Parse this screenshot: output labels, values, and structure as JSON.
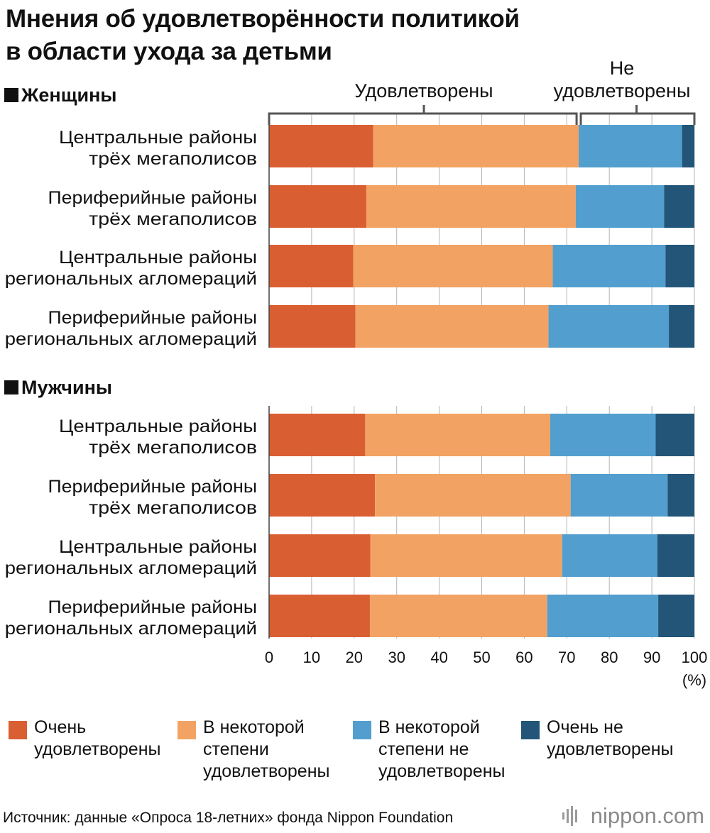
{
  "title_line1": "Мнения об удовлетворённости политикой",
  "title_line2": "в области ухода за детьми",
  "source": "Источник: данные «Опроса 18-летних» фонда Nippon Foundation",
  "brand": "nippon.com",
  "chart_data": {
    "type": "bar",
    "orientation": "horizontal",
    "stacked": true,
    "xlim": [
      0,
      100
    ],
    "xticks": [
      "0",
      "10",
      "20",
      "30",
      "40",
      "50",
      "60",
      "70",
      "80",
      "90",
      "100"
    ],
    "xunit": "(%)",
    "bracket_labels": {
      "satisfied": "Удовлетворены",
      "not_satisfied_line1": "Не",
      "not_satisfied_line2": "удовлетворены"
    },
    "series": [
      {
        "name": "Очень\nудовлетворены",
        "color": "#d95f33"
      },
      {
        "name": "В некоторой\nстепени\nудовлетворены",
        "color": "#f2a363"
      },
      {
        "name": "В некоторой\nстепени не\nудовлетворены",
        "color": "#529fcf"
      },
      {
        "name": "Очень не\nудовлетворены",
        "color": "#235578"
      }
    ],
    "groups": [
      {
        "name": "Женщины",
        "categories": [
          {
            "line1": "Центральные районы",
            "line2": "трёх мегаполисов",
            "values": [
              24.5,
              48.3,
              24.3,
              2.9
            ]
          },
          {
            "line1": "Периферийные районы",
            "line2": "трёх мегаполисов",
            "values": [
              22.9,
              49.2,
              20.8,
              7.1
            ]
          },
          {
            "line1": "Центральные районы",
            "line2": "региональных агломераций",
            "values": [
              19.8,
              46.9,
              26.5,
              6.8
            ]
          },
          {
            "line1": "Периферийные районы",
            "line2": "региональных агломераций",
            "values": [
              20.3,
              45.4,
              28.3,
              6.0
            ]
          }
        ]
      },
      {
        "name": "Мужчины",
        "categories": [
          {
            "line1": "Центральные районы",
            "line2": "трёх мегаполисов",
            "values": [
              22.6,
              43.5,
              24.8,
              9.1
            ]
          },
          {
            "line1": "Периферийные районы",
            "line2": "трёх мегаполисов",
            "values": [
              24.9,
              46.0,
              22.8,
              6.3
            ]
          },
          {
            "line1": "Центральные районы",
            "line2": "региональных агломераций",
            "values": [
              23.8,
              45.1,
              22.4,
              8.7
            ]
          },
          {
            "line1": "Периферийные районы",
            "line2": "региональных агломераций",
            "values": [
              23.7,
              41.7,
              26.1,
              8.5
            ]
          }
        ]
      }
    ]
  }
}
